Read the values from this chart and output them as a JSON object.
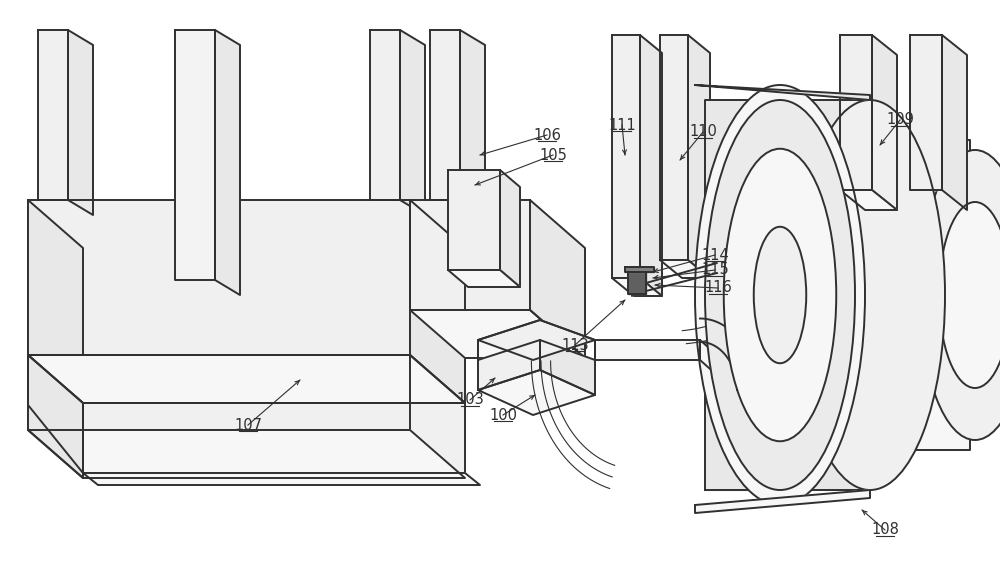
{
  "bg_color": "#ffffff",
  "lc": "#303030",
  "lw": 1.4,
  "tlw": 0.8,
  "shading": {
    "top": "#f7f7f7",
    "front": "#f0f0f0",
    "side": "#e8e8e8",
    "dark_side": "#e0e0e0"
  },
  "figsize": [
    10.0,
    5.66
  ],
  "dpi": 100
}
